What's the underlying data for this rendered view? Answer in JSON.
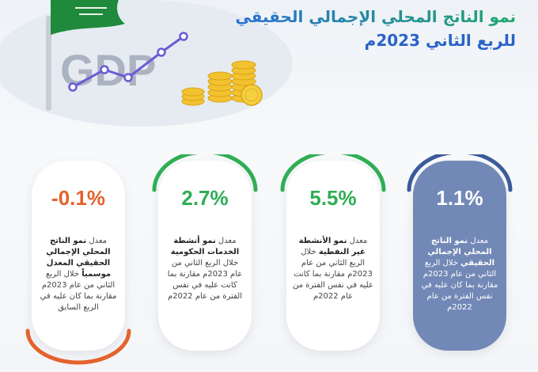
{
  "header": {
    "title_line1": "نمو الناتج المحلي الإجمالي الحقيقي",
    "title_line2": "للربع الثاني 2023م",
    "gdp_text": "GDP"
  },
  "colors": {
    "green": "#2fae55",
    "orange": "#e4622c",
    "blue_card": "#7288b6",
    "blue_arc": "#3b5a9a"
  },
  "cards": [
    {
      "value": "1.1%",
      "prefix": "معدل",
      "bold": "نمو الناتج المحلي الإجمالي الحقيقي",
      "rest": "خلال الربع الثاني من عام 2023م مقارنة بما كان عليه في نفس الفترة من عام 2022م",
      "accent": "blue"
    },
    {
      "value": "5.5%",
      "prefix": "معدل",
      "bold": "نمو الأنشطة غير النفطية",
      "rest": "خلال الربع الثاني من عام 2023م مقارنة بما كانت عليه في نفس الفترة من عام 2022م",
      "accent": "green"
    },
    {
      "value": "2.7%",
      "prefix": "معدل",
      "bold": "نمو أنشطة الخدمات الحكومية",
      "rest": "خلال الربع الثاني من عام 2023م مقارنة بما كانت عليه في نفس الفترة من عام 2022م",
      "accent": "green"
    },
    {
      "value": "-0.1%",
      "prefix": "معدل",
      "bold": "نمو الناتج المحلي الإجمالي الحقيقي المعدل موسمياً",
      "rest": "خلال الربع الثاني من عام 2023م مقارنة بما كان عليه في الربع السابق",
      "accent": "orange"
    }
  ]
}
